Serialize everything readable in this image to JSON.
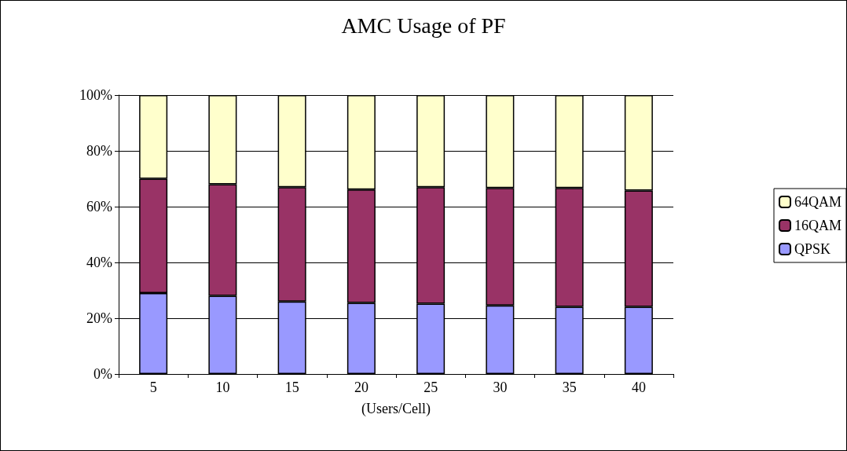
{
  "chart_data": {
    "type": "bar",
    "title": "AMC Usage of PF",
    "xlabel": "(Users/Cell)",
    "categories": [
      "5",
      "10",
      "15",
      "20",
      "25",
      "30",
      "35",
      "40"
    ],
    "stacked": true,
    "grid": "y",
    "legend": "right",
    "ylim": [
      0,
      100
    ],
    "yticks": [
      {
        "value": 0,
        "label": "0%"
      },
      {
        "value": 20,
        "label": "20%"
      },
      {
        "value": 40,
        "label": "40%"
      },
      {
        "value": 60,
        "label": "60%"
      },
      {
        "value": 80,
        "label": "80%"
      },
      {
        "value": 100,
        "label": "100%"
      }
    ],
    "series": [
      {
        "name": "QPSK",
        "color": "#9999ff",
        "values": [
          29,
          28,
          26,
          25.5,
          25.2,
          24.6,
          24.1,
          24.1
        ]
      },
      {
        "name": "16QAM",
        "color": "#993366",
        "values": [
          41,
          40,
          41,
          40.6,
          41.8,
          42.1,
          42.6,
          41.7
        ]
      },
      {
        "name": "64QAM",
        "color": "#ffffcc",
        "values": [
          30,
          32,
          33,
          33.9,
          33,
          33.3,
          33.3,
          34.2
        ]
      }
    ]
  }
}
